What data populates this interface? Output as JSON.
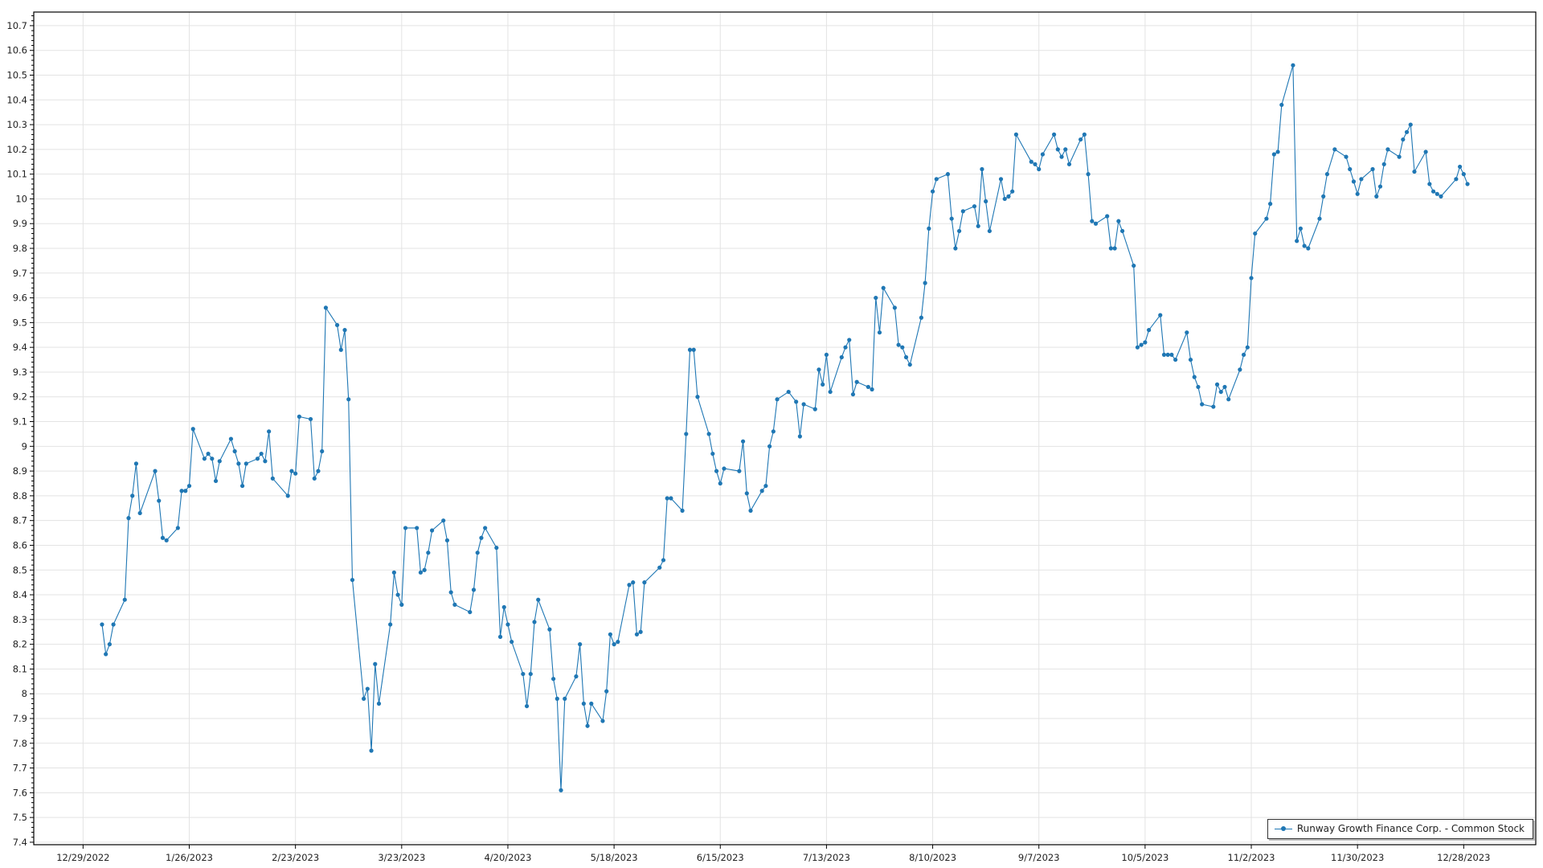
{
  "chart_data": {
    "type": "line",
    "title": "",
    "xlabel": "",
    "ylabel": "",
    "xlim": [
      "12/16/2022",
      "1/16/2024"
    ],
    "ylim": [
      7.39,
      10.755
    ],
    "grid": true,
    "legend_position": "bottom-right",
    "color": "#1f77b4",
    "x_ticks": [
      "12/29/2022",
      "1/26/2023",
      "2/23/2023",
      "3/23/2023",
      "4/20/2023",
      "5/18/2023",
      "6/15/2023",
      "7/13/2023",
      "8/10/2023",
      "9/7/2023",
      "10/5/2023",
      "11/2/2023",
      "11/30/2023",
      "12/28/2023"
    ],
    "y_ticks": [
      "7.4",
      "7.5",
      "7.6",
      "7.7",
      "7.8",
      "7.9",
      "8",
      "8.1",
      "8.2",
      "8.3",
      "8.4",
      "8.5",
      "8.6",
      "8.7",
      "8.8",
      "8.9",
      "9",
      "9.1",
      "9.2",
      "9.3",
      "9.4",
      "9.5",
      "9.6",
      "9.7",
      "9.8",
      "9.9",
      "10",
      "10.1",
      "10.2",
      "10.3",
      "10.4",
      "10.5",
      "10.6",
      "10.7"
    ],
    "series": [
      {
        "name": "Runway Growth Finance Corp. - Common Stock",
        "points": [
          [
            "1/3/2023",
            8.28
          ],
          [
            "1/4/2023",
            8.16
          ],
          [
            "1/5/2023",
            8.2
          ],
          [
            "1/6/2023",
            8.28
          ],
          [
            "1/9/2023",
            8.38
          ],
          [
            "1/10/2023",
            8.71
          ],
          [
            "1/11/2023",
            8.8
          ],
          [
            "1/12/2023",
            8.93
          ],
          [
            "1/13/2023",
            8.73
          ],
          [
            "1/17/2023",
            8.9
          ],
          [
            "1/18/2023",
            8.78
          ],
          [
            "1/19/2023",
            8.63
          ],
          [
            "1/20/2023",
            8.62
          ],
          [
            "1/23/2023",
            8.67
          ],
          [
            "1/24/2023",
            8.82
          ],
          [
            "1/25/2023",
            8.82
          ],
          [
            "1/26/2023",
            8.84
          ],
          [
            "1/27/2023",
            9.07
          ],
          [
            "1/30/2023",
            8.95
          ],
          [
            "1/31/2023",
            8.97
          ],
          [
            "2/1/2023",
            8.95
          ],
          [
            "2/2/2023",
            8.86
          ],
          [
            "2/3/2023",
            8.94
          ],
          [
            "2/6/2023",
            9.03
          ],
          [
            "2/7/2023",
            8.98
          ],
          [
            "2/8/2023",
            8.93
          ],
          [
            "2/9/2023",
            8.84
          ],
          [
            "2/10/2023",
            8.93
          ],
          [
            "2/13/2023",
            8.95
          ],
          [
            "2/14/2023",
            8.97
          ],
          [
            "2/15/2023",
            8.94
          ],
          [
            "2/16/2023",
            9.06
          ],
          [
            "2/17/2023",
            8.87
          ],
          [
            "2/21/2023",
            8.8
          ],
          [
            "2/22/2023",
            8.9
          ],
          [
            "2/23/2023",
            8.89
          ],
          [
            "2/24/2023",
            9.12
          ],
          [
            "2/27/2023",
            9.11
          ],
          [
            "2/28/2023",
            8.87
          ],
          [
            "3/1/2023",
            8.9
          ],
          [
            "3/2/2023",
            8.98
          ],
          [
            "3/3/2023",
            9.56
          ],
          [
            "3/6/2023",
            9.49
          ],
          [
            "3/7/2023",
            9.39
          ],
          [
            "3/8/2023",
            9.47
          ],
          [
            "3/9/2023",
            9.19
          ],
          [
            "3/10/2023",
            8.46
          ],
          [
            "3/13/2023",
            7.98
          ],
          [
            "3/14/2023",
            8.02
          ],
          [
            "3/15/2023",
            7.77
          ],
          [
            "3/16/2023",
            8.12
          ],
          [
            "3/17/2023",
            7.96
          ],
          [
            "3/20/2023",
            8.28
          ],
          [
            "3/21/2023",
            8.49
          ],
          [
            "3/22/2023",
            8.4
          ],
          [
            "3/23/2023",
            8.36
          ],
          [
            "3/24/2023",
            8.67
          ],
          [
            "3/27/2023",
            8.67
          ],
          [
            "3/28/2023",
            8.49
          ],
          [
            "3/29/2023",
            8.5
          ],
          [
            "3/30/2023",
            8.57
          ],
          [
            "3/31/2023",
            8.66
          ],
          [
            "4/3/2023",
            8.7
          ],
          [
            "4/4/2023",
            8.62
          ],
          [
            "4/5/2023",
            8.41
          ],
          [
            "4/6/2023",
            8.36
          ],
          [
            "4/10/2023",
            8.33
          ],
          [
            "4/11/2023",
            8.42
          ],
          [
            "4/12/2023",
            8.57
          ],
          [
            "4/13/2023",
            8.63
          ],
          [
            "4/14/2023",
            8.67
          ],
          [
            "4/17/2023",
            8.59
          ],
          [
            "4/18/2023",
            8.23
          ],
          [
            "4/19/2023",
            8.35
          ],
          [
            "4/20/2023",
            8.28
          ],
          [
            "4/21/2023",
            8.21
          ],
          [
            "4/24/2023",
            8.08
          ],
          [
            "4/25/2023",
            7.95
          ],
          [
            "4/26/2023",
            8.08
          ],
          [
            "4/27/2023",
            8.29
          ],
          [
            "4/28/2023",
            8.38
          ],
          [
            "5/1/2023",
            8.26
          ],
          [
            "5/2/2023",
            8.06
          ],
          [
            "5/3/2023",
            7.98
          ],
          [
            "5/4/2023",
            7.61
          ],
          [
            "5/5/2023",
            7.98
          ],
          [
            "5/8/2023",
            8.07
          ],
          [
            "5/9/2023",
            8.2
          ],
          [
            "5/10/2023",
            7.96
          ],
          [
            "5/11/2023",
            7.87
          ],
          [
            "5/12/2023",
            7.96
          ],
          [
            "5/15/2023",
            7.89
          ],
          [
            "5/16/2023",
            8.01
          ],
          [
            "5/17/2023",
            8.24
          ],
          [
            "5/18/2023",
            8.2
          ],
          [
            "5/19/2023",
            8.21
          ],
          [
            "5/22/2023",
            8.44
          ],
          [
            "5/23/2023",
            8.45
          ],
          [
            "5/24/2023",
            8.24
          ],
          [
            "5/25/2023",
            8.25
          ],
          [
            "5/26/2023",
            8.45
          ],
          [
            "5/30/2023",
            8.51
          ],
          [
            "5/31/2023",
            8.54
          ],
          [
            "6/1/2023",
            8.79
          ],
          [
            "6/2/2023",
            8.79
          ],
          [
            "6/5/2023",
            8.74
          ],
          [
            "6/6/2023",
            9.05
          ],
          [
            "6/7/2023",
            9.39
          ],
          [
            "6/8/2023",
            9.39
          ],
          [
            "6/9/2023",
            9.2
          ],
          [
            "6/12/2023",
            9.05
          ],
          [
            "6/13/2023",
            8.97
          ],
          [
            "6/14/2023",
            8.9
          ],
          [
            "6/15/2023",
            8.85
          ],
          [
            "6/16/2023",
            8.91
          ],
          [
            "6/20/2023",
            8.9
          ],
          [
            "6/21/2023",
            9.02
          ],
          [
            "6/22/2023",
            8.81
          ],
          [
            "6/23/2023",
            8.74
          ],
          [
            "6/26/2023",
            8.82
          ],
          [
            "6/27/2023",
            8.84
          ],
          [
            "6/28/2023",
            9.0
          ],
          [
            "6/29/2023",
            9.06
          ],
          [
            "6/30/2023",
            9.19
          ],
          [
            "7/3/2023",
            9.22
          ],
          [
            "7/5/2023",
            9.18
          ],
          [
            "7/6/2023",
            9.04
          ],
          [
            "7/7/2023",
            9.17
          ],
          [
            "7/10/2023",
            9.15
          ],
          [
            "7/11/2023",
            9.31
          ],
          [
            "7/12/2023",
            9.25
          ],
          [
            "7/13/2023",
            9.37
          ],
          [
            "7/14/2023",
            9.22
          ],
          [
            "7/17/2023",
            9.36
          ],
          [
            "7/18/2023",
            9.4
          ],
          [
            "7/19/2023",
            9.43
          ],
          [
            "7/20/2023",
            9.21
          ],
          [
            "7/21/2023",
            9.26
          ],
          [
            "7/24/2023",
            9.24
          ],
          [
            "7/25/2023",
            9.23
          ],
          [
            "7/26/2023",
            9.6
          ],
          [
            "7/27/2023",
            9.46
          ],
          [
            "7/28/2023",
            9.64
          ],
          [
            "7/31/2023",
            9.56
          ],
          [
            "8/1/2023",
            9.41
          ],
          [
            "8/2/2023",
            9.4
          ],
          [
            "8/3/2023",
            9.36
          ],
          [
            "8/4/2023",
            9.33
          ],
          [
            "8/7/2023",
            9.52
          ],
          [
            "8/8/2023",
            9.66
          ],
          [
            "8/9/2023",
            9.88
          ],
          [
            "8/10/2023",
            10.03
          ],
          [
            "8/11/2023",
            10.08
          ],
          [
            "8/14/2023",
            10.1
          ],
          [
            "8/15/2023",
            9.92
          ],
          [
            "8/16/2023",
            9.8
          ],
          [
            "8/17/2023",
            9.87
          ],
          [
            "8/18/2023",
            9.95
          ],
          [
            "8/21/2023",
            9.97
          ],
          [
            "8/22/2023",
            9.89
          ],
          [
            "8/23/2023",
            10.12
          ],
          [
            "8/24/2023",
            9.99
          ],
          [
            "8/25/2023",
            9.87
          ],
          [
            "8/28/2023",
            10.08
          ],
          [
            "8/29/2023",
            10.0
          ],
          [
            "8/30/2023",
            10.01
          ],
          [
            "8/31/2023",
            10.03
          ],
          [
            "9/1/2023",
            10.26
          ],
          [
            "9/5/2023",
            10.15
          ],
          [
            "9/6/2023",
            10.14
          ],
          [
            "9/7/2023",
            10.12
          ],
          [
            "9/8/2023",
            10.18
          ],
          [
            "9/11/2023",
            10.26
          ],
          [
            "9/12/2023",
            10.2
          ],
          [
            "9/13/2023",
            10.17
          ],
          [
            "9/14/2023",
            10.2
          ],
          [
            "9/15/2023",
            10.14
          ],
          [
            "9/18/2023",
            10.24
          ],
          [
            "9/19/2023",
            10.26
          ],
          [
            "9/20/2023",
            10.1
          ],
          [
            "9/21/2023",
            9.91
          ],
          [
            "9/22/2023",
            9.9
          ],
          [
            "9/25/2023",
            9.93
          ],
          [
            "9/26/2023",
            9.8
          ],
          [
            "9/27/2023",
            9.8
          ],
          [
            "9/28/2023",
            9.91
          ],
          [
            "9/29/2023",
            9.87
          ],
          [
            "10/2/2023",
            9.73
          ],
          [
            "10/3/2023",
            9.4
          ],
          [
            "10/4/2023",
            9.41
          ],
          [
            "10/5/2023",
            9.42
          ],
          [
            "10/6/2023",
            9.47
          ],
          [
            "10/9/2023",
            9.53
          ],
          [
            "10/10/2023",
            9.37
          ],
          [
            "10/11/2023",
            9.37
          ],
          [
            "10/12/2023",
            9.37
          ],
          [
            "10/13/2023",
            9.35
          ],
          [
            "10/16/2023",
            9.46
          ],
          [
            "10/17/2023",
            9.35
          ],
          [
            "10/18/2023",
            9.28
          ],
          [
            "10/19/2023",
            9.24
          ],
          [
            "10/20/2023",
            9.17
          ],
          [
            "10/23/2023",
            9.16
          ],
          [
            "10/24/2023",
            9.25
          ],
          [
            "10/25/2023",
            9.22
          ],
          [
            "10/26/2023",
            9.24
          ],
          [
            "10/27/2023",
            9.19
          ],
          [
            "10/30/2023",
            9.31
          ],
          [
            "10/31/2023",
            9.37
          ],
          [
            "11/1/2023",
            9.4
          ],
          [
            "11/2/2023",
            9.68
          ],
          [
            "11/3/2023",
            9.86
          ],
          [
            "11/6/2023",
            9.92
          ],
          [
            "11/7/2023",
            9.98
          ],
          [
            "11/8/2023",
            10.18
          ],
          [
            "11/9/2023",
            10.19
          ],
          [
            "11/10/2023",
            10.38
          ],
          [
            "11/13/2023",
            10.54
          ],
          [
            "11/14/2023",
            9.83
          ],
          [
            "11/15/2023",
            9.88
          ],
          [
            "11/16/2023",
            9.81
          ],
          [
            "11/17/2023",
            9.8
          ],
          [
            "11/20/2023",
            9.92
          ],
          [
            "11/21/2023",
            10.01
          ],
          [
            "11/22/2023",
            10.1
          ],
          [
            "11/24/2023",
            10.2
          ],
          [
            "11/27/2023",
            10.17
          ],
          [
            "11/28/2023",
            10.12
          ],
          [
            "11/29/2023",
            10.07
          ],
          [
            "11/30/2023",
            10.02
          ],
          [
            "12/1/2023",
            10.08
          ],
          [
            "12/4/2023",
            10.12
          ],
          [
            "12/5/2023",
            10.01
          ],
          [
            "12/6/2023",
            10.05
          ],
          [
            "12/7/2023",
            10.14
          ],
          [
            "12/8/2023",
            10.2
          ],
          [
            "12/11/2023",
            10.17
          ],
          [
            "12/12/2023",
            10.24
          ],
          [
            "12/13/2023",
            10.27
          ],
          [
            "12/14/2023",
            10.3
          ],
          [
            "12/15/2023",
            10.11
          ],
          [
            "12/18/2023",
            10.19
          ],
          [
            "12/19/2023",
            10.06
          ],
          [
            "12/20/2023",
            10.03
          ],
          [
            "12/21/2023",
            10.02
          ],
          [
            "12/22/2023",
            10.01
          ],
          [
            "12/26/2023",
            10.08
          ],
          [
            "12/27/2023",
            10.13
          ],
          [
            "12/28/2023",
            10.1
          ],
          [
            "12/29/2023",
            10.06
          ]
        ]
      }
    ]
  }
}
